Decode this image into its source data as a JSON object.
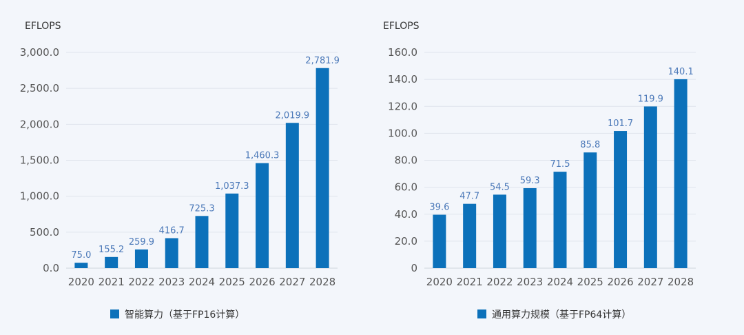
{
  "chart_data": [
    {
      "type": "bar",
      "unit_label": "EFLOPS",
      "categories": [
        "2020",
        "2021",
        "2022",
        "2023",
        "2024",
        "2025",
        "2026",
        "2027",
        "2028"
      ],
      "series": [
        {
          "name": "智能算力（基于FP16计算）",
          "values": [
            75.0,
            155.2,
            259.9,
            416.7,
            725.3,
            1037.3,
            1460.3,
            2019.9,
            2781.9
          ]
        }
      ],
      "value_labels": [
        "75.0",
        "155.2",
        "259.9",
        "416.7",
        "725.3",
        "1,037.3",
        "1,460.3",
        "2,019.9",
        "2,781.9"
      ],
      "y_ticks": [
        0,
        500,
        1000,
        1500,
        2000,
        2500,
        3000
      ],
      "y_tick_labels": [
        "0.0",
        "500.0",
        "1,000.0",
        "1,500.0",
        "2,000.0",
        "2,500.0",
        "3,000.0"
      ],
      "ylim": [
        0,
        3000
      ],
      "grid": true,
      "legend_position": "bottom",
      "bar_color": "#0c71ba"
    },
    {
      "type": "bar",
      "unit_label": "EFLOPS",
      "categories": [
        "2020",
        "2021",
        "2022",
        "2023",
        "2024",
        "2025",
        "2026",
        "2027",
        "2028"
      ],
      "series": [
        {
          "name": "通用算力规模（基于FP64计算）",
          "values": [
            39.6,
            47.7,
            54.5,
            59.3,
            71.5,
            85.8,
            101.7,
            119.9,
            140.1
          ]
        }
      ],
      "value_labels": [
        "39.6",
        "47.7",
        "54.5",
        "59.3",
        "71.5",
        "85.8",
        "101.7",
        "119.9",
        "140.1"
      ],
      "y_ticks": [
        0,
        20,
        40,
        60,
        80,
        100,
        120,
        140,
        160
      ],
      "y_tick_labels": [
        "0",
        "20.0",
        "40.0",
        "60.0",
        "80.0",
        "100.0",
        "120.0",
        "140.0",
        "160.0"
      ],
      "ylim": [
        0,
        160
      ],
      "grid": true,
      "legend_position": "bottom",
      "bar_color": "#0c71ba"
    }
  ]
}
